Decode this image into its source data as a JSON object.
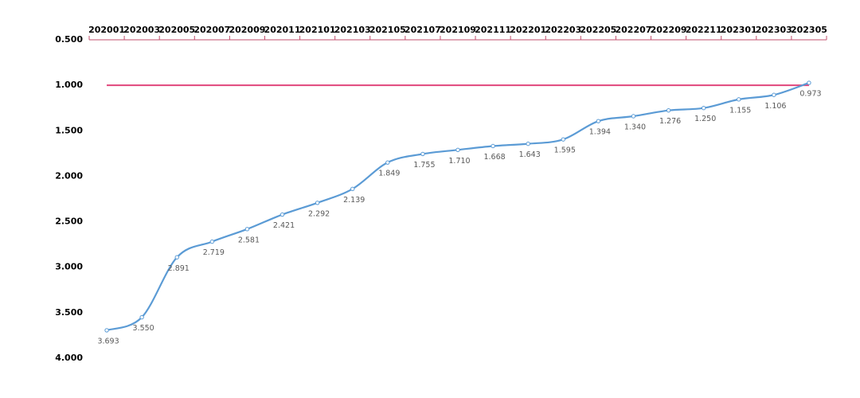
{
  "chart_data": {
    "type": "line",
    "categories": [
      "202001",
      "202003",
      "202005",
      "202007",
      "202009",
      "202011",
      "202101",
      "202103",
      "202105",
      "202107",
      "202109",
      "202111",
      "202201",
      "202203",
      "202205",
      "202207",
      "202209",
      "202211",
      "202301",
      "202303",
      "202305"
    ],
    "series": [
      {
        "color": "#5b9bd5",
        "values": [
          3.693,
          3.55,
          2.891,
          2.719,
          2.581,
          2.421,
          2.292,
          2.139,
          1.849,
          1.755,
          1.71,
          1.668,
          1.643,
          1.595,
          1.394,
          1.34,
          1.276,
          1.25,
          1.155,
          1.106,
          0.973
        ],
        "value_labels": [
          "3.693",
          "3.550",
          "2.891",
          "2.719",
          "2.581",
          "2.421",
          "2.292",
          "2.139",
          "1.849",
          "1.755",
          "1.710",
          "1.668",
          "1.643",
          "1.595",
          "1.394",
          "1.340",
          "1.276",
          "1.250",
          "1.155",
          "1.106",
          "0.973"
        ]
      }
    ],
    "ylim": [
      0.5,
      4
    ],
    "y_inverted": true,
    "yticks": [
      {
        "value": 0.5,
        "label": "0.500"
      },
      {
        "value": 1,
        "label": "1.000"
      },
      {
        "value": 1.5,
        "label": "1.500"
      },
      {
        "value": 2,
        "label": "2.000"
      },
      {
        "value": 2.5,
        "label": "2.500"
      },
      {
        "value": 3,
        "label": "3.000"
      },
      {
        "value": 3.5,
        "label": "3.500"
      },
      {
        "value": 4,
        "label": "4.000"
      }
    ],
    "reference_line": {
      "value": 1,
      "color": "#e0457b"
    },
    "axis_color": "#c0506e",
    "grid": false
  }
}
